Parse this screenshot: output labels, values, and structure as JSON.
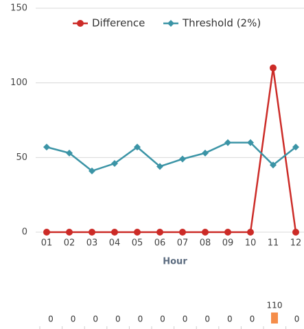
{
  "chart_data": {
    "type": "line",
    "x_label": "Hour",
    "categories": [
      "01",
      "02",
      "03",
      "04",
      "05",
      "06",
      "07",
      "08",
      "09",
      "10",
      "11",
      "12"
    ],
    "series": [
      {
        "name": "Difference",
        "color": "#cc2b27",
        "values": [
          0,
          0,
          0,
          0,
          0,
          0,
          0,
          0,
          0,
          0,
          110,
          0
        ]
      },
      {
        "name": "Threshold (2%)",
        "color": "#3b94a6",
        "values": [
          57,
          53,
          41,
          46,
          57,
          44,
          49,
          53,
          60,
          60,
          45,
          57
        ]
      }
    ],
    "ylim": [
      0,
      150
    ],
    "yticks": [
      0,
      50,
      100,
      150
    ],
    "grid": true,
    "mini_bar_color": "#f58d4a"
  }
}
